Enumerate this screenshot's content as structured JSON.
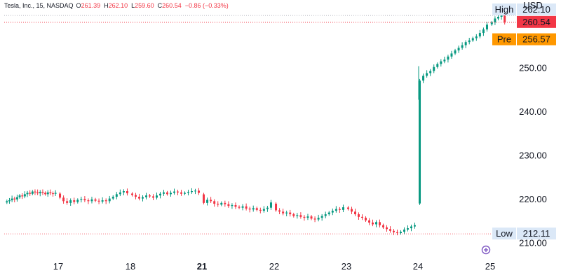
{
  "header": {
    "symbol": "Tesla, Inc., 15, NASDAQ",
    "o_label": "O",
    "o_value": "261.39",
    "h_label": "H",
    "h_value": "262.10",
    "l_label": "L",
    "l_value": "259.60",
    "c_label": "C",
    "c_value": "260.54",
    "change": "−0.86 (−0.33%)"
  },
  "currency": "USD",
  "markers": {
    "high": {
      "label": "High",
      "value": "262.10"
    },
    "last": {
      "value": "260.54"
    },
    "pre": {
      "label": "Pre",
      "value": "256.57"
    },
    "low": {
      "label": "Low",
      "value": "212.11"
    }
  },
  "colors": {
    "up": "#089981",
    "down": "#f23645",
    "pre": "#ff9800",
    "last": "#f23645",
    "marker_bg": "#dbe8f7"
  },
  "icons": {
    "event": "event-marker-icon"
  },
  "chart_data": {
    "type": "candlestick",
    "title": "",
    "interval": "15",
    "ylim": [
      207,
      265
    ],
    "yticks": [
      210,
      220,
      230,
      240,
      250
    ],
    "ytick_labels": [
      "210.00",
      "220.00",
      "230.00",
      "240.00",
      "250.00"
    ],
    "xtick_labels": [
      "17",
      "18",
      "21",
      "22",
      "23",
      "24",
      "25"
    ],
    "xtick_bold": [
      "21"
    ],
    "grid": false,
    "reference_lines": {
      "high": 262.1,
      "last": 260.54,
      "low": 212.11
    },
    "day_series": [
      {
        "day": "16",
        "closes": [
          219.6,
          219.8,
          220.2,
          220.0,
          220.5,
          220.9,
          220.7,
          221.2,
          221.5,
          221.3,
          221.8,
          221.6,
          221.4,
          221.7,
          221.5,
          221.2,
          221.6,
          221.4,
          221.3,
          221.5
        ]
      },
      {
        "day": "17",
        "closes": [
          220.4,
          219.6,
          219.2,
          219.8,
          219.4,
          219.9,
          220.1,
          219.8,
          219.6,
          220.0,
          219.7,
          219.5,
          219.8,
          219.6,
          220.2,
          220.6,
          221.2,
          221.6,
          221.9,
          221.4
        ]
      },
      {
        "day": "18",
        "closes": [
          221.0,
          220.6,
          220.2,
          220.5,
          220.9,
          220.7,
          220.4,
          220.9,
          221.3,
          221.6,
          221.2,
          221.5,
          221.8,
          221.6,
          221.3,
          221.5,
          221.7,
          221.9,
          222.0,
          221.5
        ]
      },
      {
        "day": "21",
        "closes": [
          219.2,
          219.9,
          219.6,
          219.0,
          218.8,
          219.2,
          218.9,
          218.5,
          218.7,
          218.3,
          218.1,
          218.4,
          217.9,
          217.7,
          218.0,
          217.6,
          217.4,
          217.8,
          218.1,
          219.3
        ]
      },
      {
        "day": "22",
        "closes": [
          217.5,
          217.2,
          216.8,
          217.0,
          216.6,
          216.2,
          216.4,
          216.0,
          215.8,
          216.1,
          215.6,
          215.4,
          215.8,
          216.2,
          216.6,
          217.0,
          217.4,
          217.8,
          217.6,
          218.2
        ]
      },
      {
        "day": "23",
        "closes": [
          217.8,
          217.2,
          216.6,
          216.0,
          215.8,
          215.2,
          214.7,
          214.3,
          214.8,
          214.1,
          213.6,
          213.2,
          212.8,
          212.5,
          212.3,
          212.6,
          213.1,
          213.4,
          213.8,
          214.1
        ]
      },
      {
        "day": "24",
        "closes": [
          247.2,
          248.3,
          248.9,
          249.4,
          250.3,
          251.0,
          251.6,
          252.0,
          252.7,
          253.4,
          254.1,
          254.7,
          255.3,
          256.0,
          256.4,
          256.9,
          257.3,
          258.1,
          258.9,
          260.0
        ]
      },
      {
        "day": "25",
        "closes": [
          260.5,
          261.4,
          261.8,
          262.1,
          260.54
        ]
      }
    ]
  }
}
